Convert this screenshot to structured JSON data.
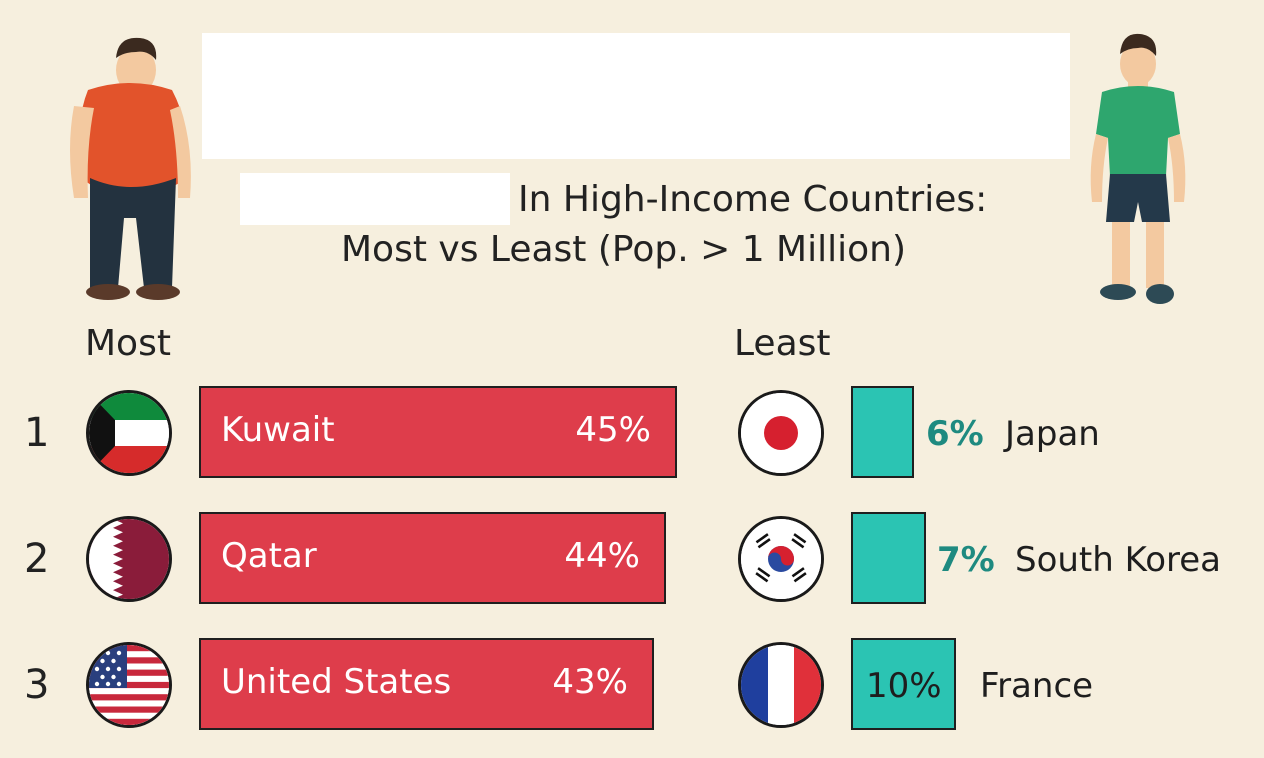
{
  "header": {
    "title_line1": "In High-Income Countries:",
    "title_line2": "Most vs Least (Pop. > 1 Million)"
  },
  "sections": {
    "most_label": "Most",
    "least_label": "Least"
  },
  "colors": {
    "background": "#f6efde",
    "most_bar": "#de3d4b",
    "least_bar": "#2bc4b3",
    "least_value_text": "#1e8a80"
  },
  "chart_data": {
    "type": "bar",
    "title": "In High-Income Countries: Most vs Least (Pop. > 1 Million)",
    "most": {
      "label": "Most",
      "items": [
        {
          "rank": "1",
          "country": "Kuwait",
          "value": 45,
          "label": "45%",
          "flag": "kuwait-flag-icon"
        },
        {
          "rank": "2",
          "country": "Qatar",
          "value": 44,
          "label": "44%",
          "flag": "qatar-flag-icon"
        },
        {
          "rank": "3",
          "country": "United States",
          "value": 43,
          "label": "43%",
          "flag": "usa-flag-icon"
        }
      ]
    },
    "least": {
      "label": "Least",
      "items": [
        {
          "country": "Japan",
          "value": 6,
          "label": "6%",
          "flag": "japan-flag-icon"
        },
        {
          "country": "South Korea",
          "value": 7,
          "label": "7%",
          "flag": "south-korea-flag-icon"
        },
        {
          "country": "France",
          "value": 10,
          "label": "10%",
          "flag": "france-flag-icon"
        }
      ]
    }
  }
}
